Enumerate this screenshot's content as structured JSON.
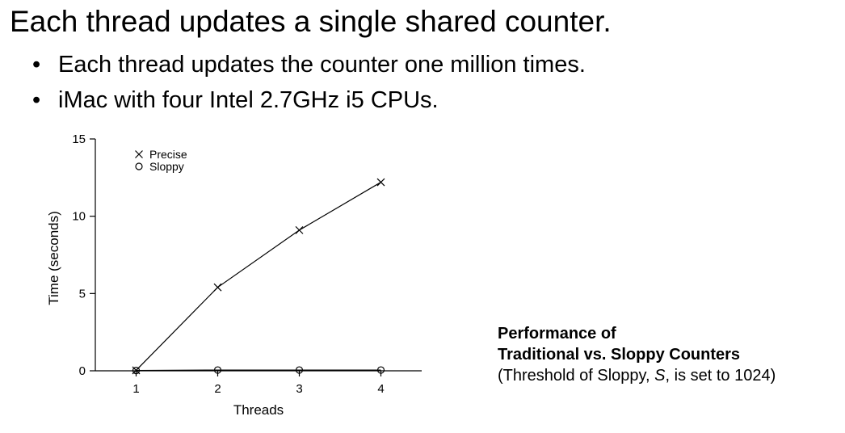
{
  "slide": {
    "title": "Each thread updates a single shared counter.",
    "bullets": [
      "Each thread updates the counter one million times.",
      "iMac with four Intel 2.7GHz i5 CPUs."
    ],
    "bullet_glyph": "•"
  },
  "caption": {
    "line1": "Performance of",
    "line2": "Traditional vs. Sloppy Counters",
    "line3_pre": "(Threshold of Sloppy, ",
    "line3_symbol": "S",
    "line3_post": ", is set to 1024)"
  },
  "chart_data": {
    "type": "line",
    "title": "",
    "xlabel": "Threads",
    "ylabel": "Time (seconds)",
    "x": [
      1,
      2,
      3,
      4
    ],
    "xticks": [
      1,
      2,
      3,
      4
    ],
    "yticks": [
      0,
      5,
      10,
      15
    ],
    "xlim": [
      0.5,
      4.5
    ],
    "ylim": [
      0,
      15
    ],
    "grid": false,
    "legend_position": "top-left",
    "series": [
      {
        "name": "Precise",
        "marker": "x",
        "values": [
          0.03,
          5.4,
          9.1,
          12.2
        ]
      },
      {
        "name": "Sloppy",
        "marker": "o",
        "values": [
          0.02,
          0.05,
          0.05,
          0.05
        ]
      }
    ]
  }
}
